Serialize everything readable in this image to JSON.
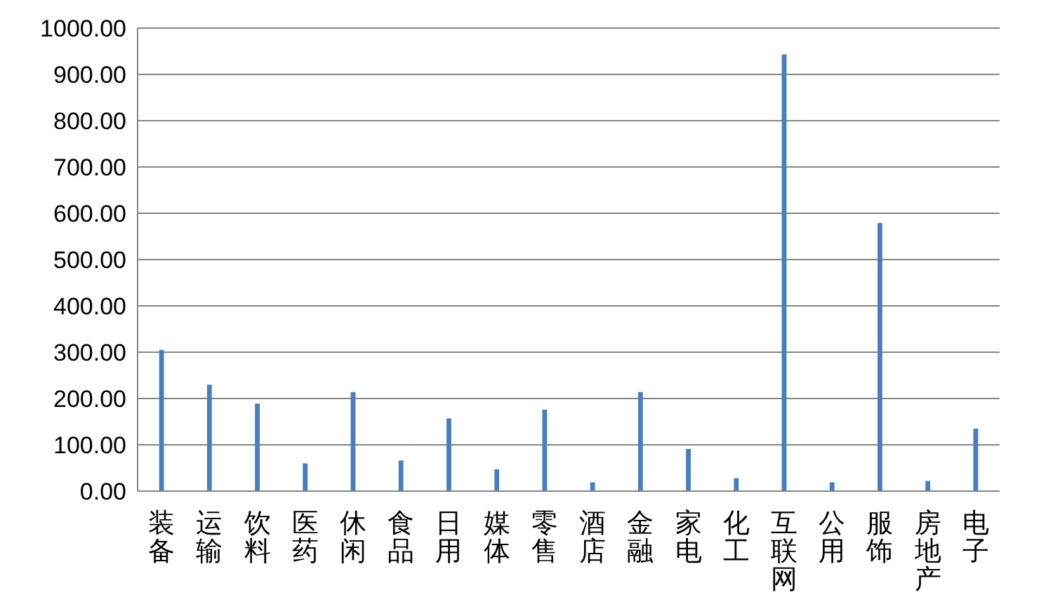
{
  "chart_data": {
    "type": "bar",
    "categories": [
      "装备",
      "运输",
      "饮料",
      "医药",
      "休闲",
      "食品",
      "日用",
      "媒体",
      "零售",
      "酒店",
      "金融",
      "家电",
      "化工",
      "互联网",
      "公用",
      "服饰",
      "房地产",
      "电子"
    ],
    "values": [
      305,
      230,
      189,
      60,
      214,
      66,
      157,
      47,
      176,
      19,
      214,
      91,
      28,
      943,
      19,
      579,
      22,
      135
    ],
    "color": "#4a7ebb",
    "ylim": [
      0,
      1000
    ],
    "yticks": [
      {
        "value": 0,
        "label": "0.00"
      },
      {
        "value": 100,
        "label": "100.00"
      },
      {
        "value": 200,
        "label": "200.00"
      },
      {
        "value": 300,
        "label": "300.00"
      },
      {
        "value": 400,
        "label": "400.00"
      },
      {
        "value": 500,
        "label": "500.00"
      },
      {
        "value": 600,
        "label": "600.00"
      },
      {
        "value": 700,
        "label": "700.00"
      },
      {
        "value": 800,
        "label": "800.00"
      },
      {
        "value": 900,
        "label": "900.00"
      },
      {
        "value": 1000,
        "label": "1000.00"
      }
    ],
    "grid": "y"
  }
}
